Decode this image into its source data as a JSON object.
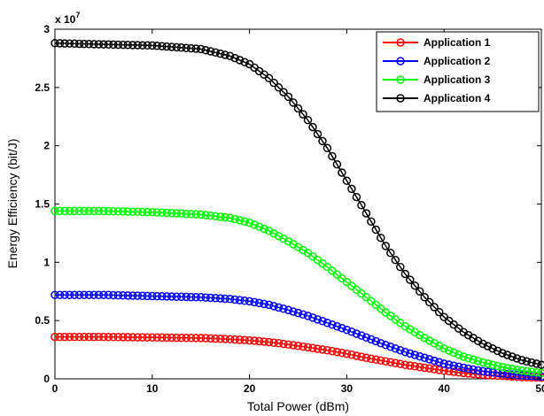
{
  "chart_data": {
    "type": "line",
    "title": "",
    "xlabel": "Total Power (dBm)",
    "ylabel": "Energy Efficiency (bit/J)",
    "y_multiplier_label": "x 10",
    "y_multiplier_exponent": "7",
    "xlim": [
      0,
      50
    ],
    "ylim": [
      0,
      3
    ],
    "xticks": [
      0,
      10,
      20,
      30,
      40,
      50
    ],
    "yticks": [
      0,
      0.5,
      1,
      1.5,
      2,
      2.5,
      3
    ],
    "xtick_labels": [
      "0",
      "10",
      "20",
      "30",
      "40",
      "50"
    ],
    "ytick_labels": [
      "0",
      "0.5",
      "1",
      "1.5",
      "2",
      "2.5",
      "3"
    ],
    "grid": false,
    "legend_position": "top-right",
    "marker": "circle",
    "series": [
      {
        "name": "Application 1",
        "color": "#ff0000",
        "x": [
          0,
          5,
          10,
          15,
          18,
          20,
          22,
          24,
          26,
          28,
          30,
          32,
          34,
          36,
          38,
          40,
          42,
          44,
          46,
          48,
          50
        ],
        "y": [
          0.36,
          0.36,
          0.355,
          0.35,
          0.34,
          0.33,
          0.315,
          0.295,
          0.27,
          0.245,
          0.215,
          0.18,
          0.15,
          0.12,
          0.095,
          0.07,
          0.05,
          0.035,
          0.025,
          0.015,
          0.01
        ]
      },
      {
        "name": "Application 2",
        "color": "#0000ff",
        "x": [
          0,
          5,
          10,
          15,
          18,
          20,
          22,
          24,
          26,
          28,
          30,
          32,
          34,
          36,
          38,
          40,
          42,
          44,
          46,
          48,
          50
        ],
        "y": [
          0.72,
          0.72,
          0.71,
          0.7,
          0.685,
          0.665,
          0.635,
          0.59,
          0.54,
          0.48,
          0.42,
          0.355,
          0.29,
          0.23,
          0.18,
          0.13,
          0.095,
          0.065,
          0.045,
          0.03,
          0.02
        ]
      },
      {
        "name": "Application 3",
        "color": "#00ff00",
        "x": [
          0,
          5,
          10,
          15,
          18,
          20,
          22,
          24,
          26,
          28,
          30,
          32,
          34,
          36,
          38,
          40,
          42,
          44,
          46,
          48,
          50
        ],
        "y": [
          1.44,
          1.44,
          1.43,
          1.41,
          1.38,
          1.34,
          1.27,
          1.18,
          1.08,
          0.96,
          0.83,
          0.7,
          0.57,
          0.45,
          0.35,
          0.26,
          0.19,
          0.14,
          0.1,
          0.07,
          0.05
        ]
      },
      {
        "name": "Application 4",
        "color": "#000000",
        "x": [
          0,
          5,
          10,
          15,
          18,
          20,
          22,
          24,
          26,
          28,
          30,
          32,
          34,
          36,
          38,
          40,
          42,
          44,
          46,
          48,
          50
        ],
        "y": [
          2.88,
          2.87,
          2.86,
          2.83,
          2.77,
          2.7,
          2.58,
          2.42,
          2.22,
          1.98,
          1.7,
          1.42,
          1.14,
          0.9,
          0.7,
          0.53,
          0.4,
          0.3,
          0.22,
          0.16,
          0.12
        ]
      }
    ]
  }
}
